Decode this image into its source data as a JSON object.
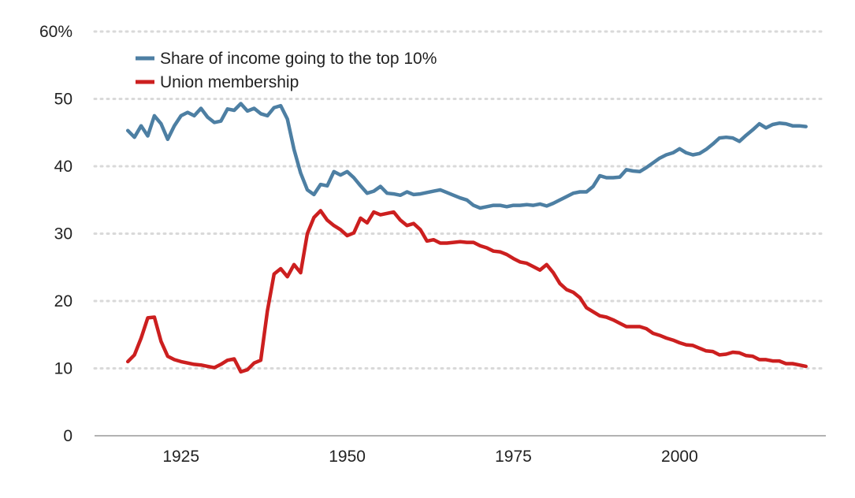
{
  "chart_data": {
    "type": "line",
    "title": "",
    "xlabel": "",
    "ylabel": "",
    "xlim": [
      1912,
      2022
    ],
    "ylim": [
      0,
      60
    ],
    "x_ticks": [
      1925,
      1950,
      1975,
      2000
    ],
    "x_tick_labels": [
      "1925",
      "1950",
      "1975",
      "2000"
    ],
    "y_ticks": [
      0,
      10,
      20,
      30,
      40,
      50,
      60
    ],
    "y_tick_labels": [
      "0",
      "10",
      "20",
      "30",
      "40",
      "50",
      "60%"
    ],
    "grid": "horizontal dotted",
    "legend_position": "top-left",
    "series": [
      {
        "name": "Share of income going to the top 10%",
        "color": "#4d7fa3",
        "points": [
          [
            1917,
            45.3
          ],
          [
            1918,
            44.3
          ],
          [
            1919,
            46.0
          ],
          [
            1920,
            44.5
          ],
          [
            1921,
            47.5
          ],
          [
            1922,
            46.3
          ],
          [
            1923,
            44.0
          ],
          [
            1924,
            46.0
          ],
          [
            1925,
            47.5
          ],
          [
            1926,
            48.0
          ],
          [
            1927,
            47.5
          ],
          [
            1928,
            48.6
          ],
          [
            1929,
            47.3
          ],
          [
            1930,
            46.5
          ],
          [
            1931,
            46.7
          ],
          [
            1932,
            48.5
          ],
          [
            1933,
            48.3
          ],
          [
            1934,
            49.3
          ],
          [
            1935,
            48.2
          ],
          [
            1936,
            48.6
          ],
          [
            1937,
            47.8
          ],
          [
            1938,
            47.5
          ],
          [
            1939,
            48.7
          ],
          [
            1940,
            49.0
          ],
          [
            1941,
            47.0
          ],
          [
            1942,
            42.5
          ],
          [
            1943,
            39.0
          ],
          [
            1944,
            36.5
          ],
          [
            1945,
            35.8
          ],
          [
            1946,
            37.3
          ],
          [
            1947,
            37.1
          ],
          [
            1948,
            39.2
          ],
          [
            1949,
            38.7
          ],
          [
            1950,
            39.2
          ],
          [
            1951,
            38.3
          ],
          [
            1952,
            37.1
          ],
          [
            1953,
            36.0
          ],
          [
            1954,
            36.3
          ],
          [
            1955,
            37.0
          ],
          [
            1956,
            36.0
          ],
          [
            1957,
            35.9
          ],
          [
            1958,
            35.7
          ],
          [
            1959,
            36.2
          ],
          [
            1960,
            35.8
          ],
          [
            1961,
            35.9
          ],
          [
            1962,
            36.1
          ],
          [
            1963,
            36.3
          ],
          [
            1964,
            36.5
          ],
          [
            1965,
            36.1
          ],
          [
            1966,
            35.7
          ],
          [
            1967,
            35.3
          ],
          [
            1968,
            35.0
          ],
          [
            1969,
            34.2
          ],
          [
            1970,
            33.8
          ],
          [
            1971,
            34.0
          ],
          [
            1972,
            34.2
          ],
          [
            1973,
            34.2
          ],
          [
            1974,
            34.0
          ],
          [
            1975,
            34.2
          ],
          [
            1976,
            34.2
          ],
          [
            1977,
            34.3
          ],
          [
            1978,
            34.2
          ],
          [
            1979,
            34.4
          ],
          [
            1980,
            34.1
          ],
          [
            1981,
            34.5
          ],
          [
            1982,
            35.0
          ],
          [
            1983,
            35.5
          ],
          [
            1984,
            36.0
          ],
          [
            1985,
            36.2
          ],
          [
            1986,
            36.2
          ],
          [
            1987,
            37.0
          ],
          [
            1988,
            38.6
          ],
          [
            1989,
            38.3
          ],
          [
            1990,
            38.3
          ],
          [
            1991,
            38.4
          ],
          [
            1992,
            39.5
          ],
          [
            1993,
            39.3
          ],
          [
            1994,
            39.2
          ],
          [
            1995,
            39.8
          ],
          [
            1996,
            40.5
          ],
          [
            1997,
            41.2
          ],
          [
            1998,
            41.7
          ],
          [
            1999,
            42.0
          ],
          [
            2000,
            42.6
          ],
          [
            2001,
            42.0
          ],
          [
            2002,
            41.7
          ],
          [
            2003,
            41.9
          ],
          [
            2004,
            42.5
          ],
          [
            2005,
            43.3
          ],
          [
            2006,
            44.2
          ],
          [
            2007,
            44.3
          ],
          [
            2008,
            44.2
          ],
          [
            2009,
            43.7
          ],
          [
            2010,
            44.6
          ],
          [
            2011,
            45.4
          ],
          [
            2012,
            46.3
          ],
          [
            2013,
            45.7
          ],
          [
            2014,
            46.2
          ],
          [
            2015,
            46.4
          ],
          [
            2016,
            46.3
          ],
          [
            2017,
            46.0
          ],
          [
            2018,
            46.0
          ],
          [
            2019,
            45.9
          ]
        ]
      },
      {
        "name": "Union membership",
        "color": "#cc1f1f",
        "points": [
          [
            1917,
            11.0
          ],
          [
            1918,
            12.0
          ],
          [
            1919,
            14.5
          ],
          [
            1920,
            17.5
          ],
          [
            1921,
            17.6
          ],
          [
            1922,
            14.0
          ],
          [
            1923,
            11.8
          ],
          [
            1924,
            11.3
          ],
          [
            1925,
            11.0
          ],
          [
            1926,
            10.8
          ],
          [
            1927,
            10.6
          ],
          [
            1928,
            10.5
          ],
          [
            1929,
            10.3
          ],
          [
            1930,
            10.1
          ],
          [
            1931,
            10.6
          ],
          [
            1932,
            11.2
          ],
          [
            1933,
            11.4
          ],
          [
            1934,
            9.5
          ],
          [
            1935,
            9.8
          ],
          [
            1936,
            10.8
          ],
          [
            1937,
            11.2
          ],
          [
            1938,
            18.5
          ],
          [
            1939,
            24.0
          ],
          [
            1940,
            24.8
          ],
          [
            1941,
            23.6
          ],
          [
            1942,
            25.4
          ],
          [
            1943,
            24.2
          ],
          [
            1944,
            30.0
          ],
          [
            1945,
            32.4
          ],
          [
            1946,
            33.4
          ],
          [
            1947,
            32.0
          ],
          [
            1948,
            31.2
          ],
          [
            1949,
            30.6
          ],
          [
            1950,
            29.7
          ],
          [
            1951,
            30.1
          ],
          [
            1952,
            32.3
          ],
          [
            1953,
            31.6
          ],
          [
            1954,
            33.2
          ],
          [
            1955,
            32.8
          ],
          [
            1956,
            33.0
          ],
          [
            1957,
            33.2
          ],
          [
            1958,
            32.0
          ],
          [
            1959,
            31.2
          ],
          [
            1960,
            31.5
          ],
          [
            1961,
            30.6
          ],
          [
            1962,
            28.9
          ],
          [
            1963,
            29.1
          ],
          [
            1964,
            28.6
          ],
          [
            1965,
            28.6
          ],
          [
            1966,
            28.7
          ],
          [
            1967,
            28.8
          ],
          [
            1968,
            28.7
          ],
          [
            1969,
            28.7
          ],
          [
            1970,
            28.2
          ],
          [
            1971,
            27.9
          ],
          [
            1972,
            27.4
          ],
          [
            1973,
            27.3
          ],
          [
            1974,
            26.9
          ],
          [
            1975,
            26.3
          ],
          [
            1976,
            25.8
          ],
          [
            1977,
            25.6
          ],
          [
            1978,
            25.1
          ],
          [
            1979,
            24.6
          ],
          [
            1980,
            25.4
          ],
          [
            1981,
            24.2
          ],
          [
            1982,
            22.6
          ],
          [
            1983,
            21.7
          ],
          [
            1984,
            21.3
          ],
          [
            1985,
            20.5
          ],
          [
            1986,
            19.0
          ],
          [
            1987,
            18.4
          ],
          [
            1988,
            17.8
          ],
          [
            1989,
            17.6
          ],
          [
            1990,
            17.2
          ],
          [
            1991,
            16.7
          ],
          [
            1992,
            16.2
          ],
          [
            1993,
            16.2
          ],
          [
            1994,
            16.2
          ],
          [
            1995,
            15.9
          ],
          [
            1996,
            15.2
          ],
          [
            1997,
            14.9
          ],
          [
            1998,
            14.5
          ],
          [
            1999,
            14.2
          ],
          [
            2000,
            13.8
          ],
          [
            2001,
            13.5
          ],
          [
            2002,
            13.4
          ],
          [
            2003,
            13.0
          ],
          [
            2004,
            12.6
          ],
          [
            2005,
            12.5
          ],
          [
            2006,
            12.0
          ],
          [
            2007,
            12.1
          ],
          [
            2008,
            12.4
          ],
          [
            2009,
            12.3
          ],
          [
            2010,
            11.9
          ],
          [
            2011,
            11.8
          ],
          [
            2012,
            11.3
          ],
          [
            2013,
            11.3
          ],
          [
            2014,
            11.1
          ],
          [
            2015,
            11.1
          ],
          [
            2016,
            10.7
          ],
          [
            2017,
            10.7
          ],
          [
            2018,
            10.5
          ],
          [
            2019,
            10.3
          ]
        ]
      }
    ]
  }
}
